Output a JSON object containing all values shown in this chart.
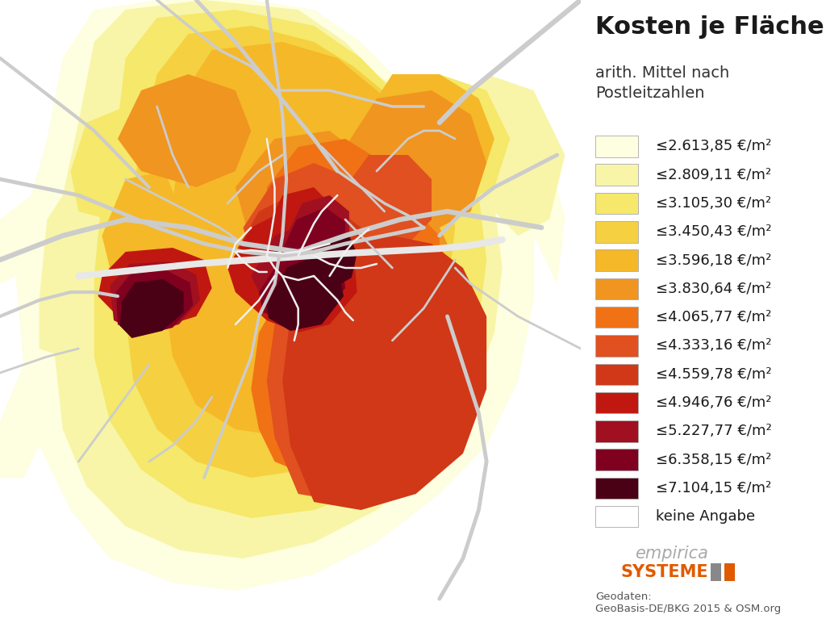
{
  "title": "Kosten je Fläche",
  "subtitle": "arith. Mittel nach\nPostleitzahlen",
  "legend_labels": [
    "≤2.613,85 €/m²",
    "≤2.809,11 €/m²",
    "≤3.105,30 €/m²",
    "≤3.450,43 €/m²",
    "≤3.596,18 €/m²",
    "≤3.830,64 €/m²",
    "≤4.065,77 €/m²",
    "≤4.333,16 €/m²",
    "≤4.559,78 €/m²",
    "≤4.946,76 €/m²",
    "≤5.227,77 €/m²",
    "≤6.358,15 €/m²",
    "≤7.104,15 €/m²",
    "keine Angabe"
  ],
  "legend_colors": [
    "#FEFEE0",
    "#F8F5A8",
    "#F5E86A",
    "#F5D040",
    "#F5B828",
    "#F09520",
    "#F07215",
    "#E05020",
    "#D03818",
    "#C01810",
    "#A01020",
    "#800020",
    "#4A0015",
    "#FFFFFF"
  ],
  "background_color": "#FFFFFF",
  "map_bg_color": "#FFFFFF",
  "title_fontsize": 22,
  "subtitle_fontsize": 14,
  "legend_fontsize": 13,
  "geodaten_fontsize": 9.5
}
